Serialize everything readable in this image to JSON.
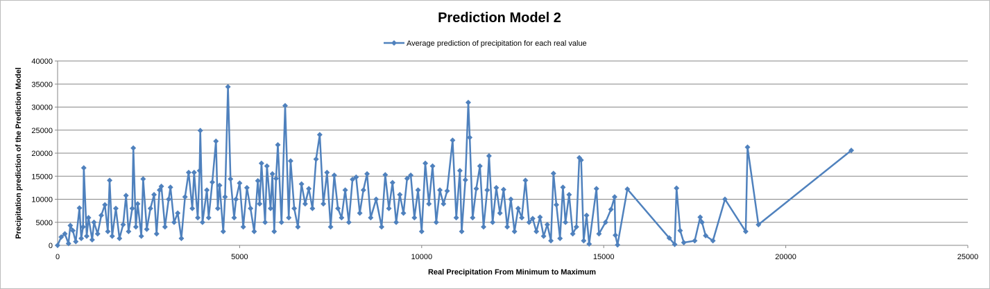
{
  "chart_data": {
    "type": "line",
    "title": "Prediction Model 2",
    "xlabel": "Real Precipitation From Minimum to Maximum",
    "ylabel": "Precipitation prediction of the Prediction Model",
    "xlim": [
      0,
      25000
    ],
    "ylim": [
      0,
      40000
    ],
    "x_ticks": [
      "0",
      "5000",
      "10000",
      "15000",
      "20000",
      "25000"
    ],
    "y_ticks": [
      "0",
      "5000",
      "10000",
      "15000",
      "20000",
      "25000",
      "30000",
      "35000",
      "40000"
    ],
    "grid": "horizontal",
    "legend_position": "top",
    "color": "#4F81BD",
    "series": [
      {
        "name": "Average prediction of precipitation for each real value",
        "points": [
          [
            0,
            0
          ],
          [
            100,
            1800
          ],
          [
            200,
            2500
          ],
          [
            300,
            400
          ],
          [
            350,
            4300
          ],
          [
            420,
            3200
          ],
          [
            500,
            800
          ],
          [
            600,
            8100
          ],
          [
            650,
            1500
          ],
          [
            700,
            4000
          ],
          [
            720,
            16800
          ],
          [
            800,
            2000
          ],
          [
            850,
            6000
          ],
          [
            950,
            1200
          ],
          [
            1000,
            5000
          ],
          [
            1100,
            2500
          ],
          [
            1200,
            6500
          ],
          [
            1300,
            8800
          ],
          [
            1380,
            3000
          ],
          [
            1430,
            14100
          ],
          [
            1500,
            2000
          ],
          [
            1600,
            8000
          ],
          [
            1700,
            1500
          ],
          [
            1800,
            4500
          ],
          [
            1880,
            10800
          ],
          [
            1950,
            3000
          ],
          [
            2050,
            8000
          ],
          [
            2080,
            21100
          ],
          [
            2150,
            4000
          ],
          [
            2200,
            9000
          ],
          [
            2300,
            2000
          ],
          [
            2350,
            14400
          ],
          [
            2450,
            3500
          ],
          [
            2550,
            8000
          ],
          [
            2650,
            11000
          ],
          [
            2720,
            2500
          ],
          [
            2800,
            12000
          ],
          [
            2850,
            12800
          ],
          [
            2950,
            4000
          ],
          [
            3050,
            10000
          ],
          [
            3100,
            12600
          ],
          [
            3200,
            5000
          ],
          [
            3300,
            7000
          ],
          [
            3400,
            1500
          ],
          [
            3500,
            10500
          ],
          [
            3600,
            15800
          ],
          [
            3700,
            8000
          ],
          [
            3750,
            15800
          ],
          [
            3850,
            6000
          ],
          [
            3900,
            16200
          ],
          [
            3920,
            24900
          ],
          [
            3980,
            5000
          ],
          [
            4100,
            12000
          ],
          [
            4150,
            6000
          ],
          [
            4250,
            13700
          ],
          [
            4350,
            22600
          ],
          [
            4400,
            8000
          ],
          [
            4450,
            13000
          ],
          [
            4550,
            3000
          ],
          [
            4600,
            10500
          ],
          [
            4680,
            34400
          ],
          [
            4750,
            14400
          ],
          [
            4850,
            6000
          ],
          [
            4900,
            10000
          ],
          [
            5000,
            13500
          ],
          [
            5100,
            4000
          ],
          [
            5200,
            12500
          ],
          [
            5300,
            8000
          ],
          [
            5400,
            3000
          ],
          [
            5500,
            14000
          ],
          [
            5550,
            9000
          ],
          [
            5600,
            17800
          ],
          [
            5700,
            5000
          ],
          [
            5750,
            17200
          ],
          [
            5850,
            8000
          ],
          [
            5900,
            15500
          ],
          [
            5950,
            3000
          ],
          [
            6000,
            14500
          ],
          [
            6050,
            21800
          ],
          [
            6150,
            5000
          ],
          [
            6250,
            30300
          ],
          [
            6350,
            6000
          ],
          [
            6400,
            18300
          ],
          [
            6500,
            8000
          ],
          [
            6600,
            4000
          ],
          [
            6700,
            13300
          ],
          [
            6800,
            9000
          ],
          [
            6900,
            12300
          ],
          [
            7000,
            8000
          ],
          [
            7100,
            18700
          ],
          [
            7200,
            24000
          ],
          [
            7300,
            9000
          ],
          [
            7400,
            15800
          ],
          [
            7500,
            4000
          ],
          [
            7600,
            15200
          ],
          [
            7700,
            8000
          ],
          [
            7800,
            6000
          ],
          [
            7900,
            12000
          ],
          [
            8000,
            5000
          ],
          [
            8100,
            14300
          ],
          [
            8200,
            14800
          ],
          [
            8300,
            7000
          ],
          [
            8400,
            12000
          ],
          [
            8500,
            15500
          ],
          [
            8600,
            6000
          ],
          [
            8750,
            10000
          ],
          [
            8900,
            4000
          ],
          [
            9000,
            15300
          ],
          [
            9100,
            8000
          ],
          [
            9200,
            13600
          ],
          [
            9300,
            5000
          ],
          [
            9400,
            11000
          ],
          [
            9500,
            7000
          ],
          [
            9600,
            14500
          ],
          [
            9700,
            15200
          ],
          [
            9800,
            6000
          ],
          [
            9900,
            12000
          ],
          [
            10000,
            3000
          ],
          [
            10100,
            17800
          ],
          [
            10200,
            9000
          ],
          [
            10300,
            17200
          ],
          [
            10400,
            5000
          ],
          [
            10500,
            12000
          ],
          [
            10600,
            9000
          ],
          [
            10700,
            11800
          ],
          [
            10850,
            22800
          ],
          [
            10950,
            6000
          ],
          [
            11050,
            16200
          ],
          [
            11100,
            3000
          ],
          [
            11200,
            14200
          ],
          [
            11280,
            31000
          ],
          [
            11320,
            23400
          ],
          [
            11400,
            6000
          ],
          [
            11500,
            12300
          ],
          [
            11600,
            17200
          ],
          [
            11700,
            4000
          ],
          [
            11800,
            12000
          ],
          [
            11850,
            19400
          ],
          [
            11950,
            5000
          ],
          [
            12050,
            12500
          ],
          [
            12150,
            7000
          ],
          [
            12250,
            12100
          ],
          [
            12350,
            4000
          ],
          [
            12450,
            10000
          ],
          [
            12550,
            3000
          ],
          [
            12650,
            8000
          ],
          [
            12750,
            6000
          ],
          [
            12850,
            14100
          ],
          [
            12950,
            5000
          ],
          [
            13050,
            5800
          ],
          [
            13150,
            3000
          ],
          [
            13250,
            6100
          ],
          [
            13350,
            2000
          ],
          [
            13450,
            4500
          ],
          [
            13550,
            1000
          ],
          [
            13620,
            15600
          ],
          [
            13700,
            8800
          ],
          [
            13800,
            1500
          ],
          [
            13880,
            12600
          ],
          [
            13950,
            5000
          ],
          [
            14050,
            11000
          ],
          [
            14150,
            2500
          ],
          [
            14250,
            4000
          ],
          [
            14330,
            19000
          ],
          [
            14380,
            18500
          ],
          [
            14450,
            1000
          ],
          [
            14530,
            6500
          ],
          [
            14600,
            300
          ],
          [
            14800,
            12300
          ],
          [
            14870,
            2500
          ],
          [
            15050,
            5000
          ],
          [
            15200,
            7800
          ],
          [
            15300,
            10500
          ],
          [
            15320,
            2200
          ],
          [
            15380,
            100
          ],
          [
            15650,
            12200
          ],
          [
            16800,
            1600
          ],
          [
            16950,
            200
          ],
          [
            17000,
            12400
          ],
          [
            17100,
            3200
          ],
          [
            17200,
            600
          ],
          [
            17500,
            1000
          ],
          [
            17650,
            6100
          ],
          [
            17700,
            5000
          ],
          [
            17800,
            2100
          ],
          [
            18000,
            1000
          ],
          [
            18330,
            10000
          ],
          [
            18900,
            3000
          ],
          [
            18950,
            21300
          ],
          [
            19250,
            4500
          ],
          [
            21800,
            20600
          ]
        ]
      }
    ]
  }
}
